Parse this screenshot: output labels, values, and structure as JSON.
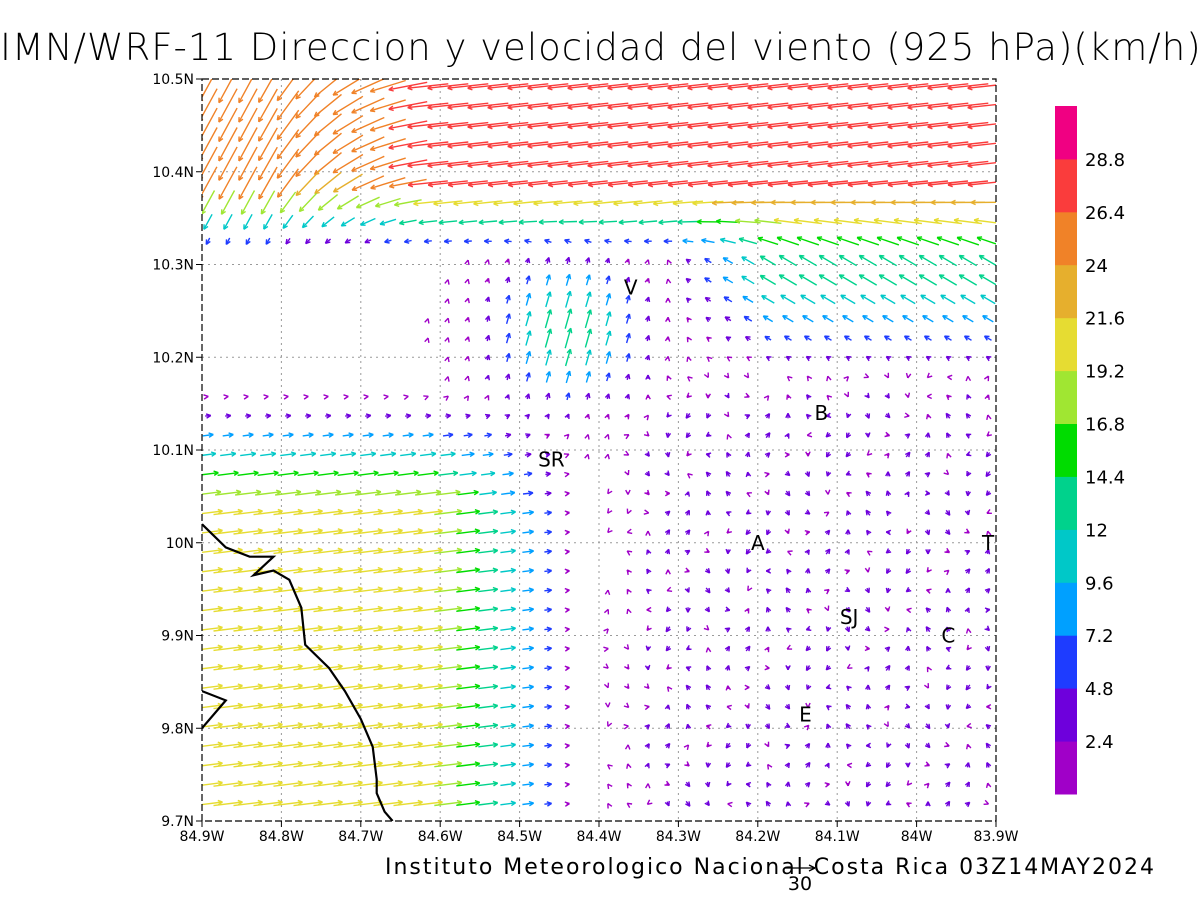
{
  "title": "IMN/WRF-11 Direccion y velocidad del viento (925 hPa)(km/h)",
  "footer": "Instituto Meteorologico Nacional Costa Rica 03Z14MAY2024",
  "reference_vector": {
    "label": "30",
    "speed": 30
  },
  "axes": {
    "x_ticks": [
      "84.9W",
      "84.8W",
      "84.7W",
      "84.6W",
      "84.5W",
      "84.4W",
      "84.3W",
      "84.2W",
      "84.1W",
      "84W",
      "83.9W"
    ],
    "y_ticks": [
      "9.7N",
      "9.8N",
      "9.9N",
      "10N",
      "10.1N",
      "10.2N",
      "10.3N",
      "10.4N",
      "10.5N"
    ],
    "lon_range": [
      -84.9,
      -83.9
    ],
    "lat_range": [
      9.7,
      10.5
    ],
    "grid": true
  },
  "colorbar": {
    "labels": [
      "2.4",
      "4.8",
      "7.2",
      "9.6",
      "12",
      "14.4",
      "16.8",
      "19.2",
      "21.6",
      "24",
      "26.4",
      "28.8"
    ],
    "colors": [
      "#a000c8",
      "#6e00dc",
      "#1e3cff",
      "#00a0ff",
      "#00c8c8",
      "#00d28c",
      "#00dc00",
      "#a0e632",
      "#e6dc32",
      "#e6af2d",
      "#f08228",
      "#fa3c3c",
      "#f00082"
    ]
  },
  "places": [
    {
      "label": "V",
      "lon": -84.36,
      "lat": 10.275
    },
    {
      "label": "B",
      "lon": -84.12,
      "lat": 10.14
    },
    {
      "label": "SR",
      "lon": -84.46,
      "lat": 10.09
    },
    {
      "label": "A",
      "lon": -84.2,
      "lat": 10.0
    },
    {
      "label": "T",
      "lon": -83.91,
      "lat": 10.0
    },
    {
      "label": "SJ",
      "lon": -84.085,
      "lat": 9.92
    },
    {
      "label": "C",
      "lon": -83.96,
      "lat": 9.9
    },
    {
      "label": "E",
      "lon": -84.14,
      "lat": 9.815
    }
  ],
  "coastline": [
    [
      -84.9,
      10.02
    ],
    [
      -84.87,
      9.995
    ],
    [
      -84.84,
      9.985
    ],
    [
      -84.81,
      9.985
    ],
    [
      -84.835,
      9.965
    ],
    [
      -84.81,
      9.97
    ],
    [
      -84.79,
      9.96
    ],
    [
      -84.775,
      9.93
    ],
    [
      -84.77,
      9.89
    ],
    [
      -84.74,
      9.865
    ],
    [
      -84.72,
      9.84
    ],
    [
      -84.7,
      9.81
    ],
    [
      -84.685,
      9.78
    ],
    [
      -84.68,
      9.745
    ],
    [
      -84.68,
      9.73
    ],
    [
      -84.67,
      9.71
    ],
    [
      -84.66,
      9.7
    ]
  ],
  "coastline_spur": [
    [
      -84.9,
      9.8
    ],
    [
      -84.87,
      9.83
    ],
    [
      -84.9,
      9.84
    ]
  ],
  "wind_field": {
    "description": "sampled vector field; u,v in km/h",
    "regions": [
      {
        "name": "northwest-jet",
        "speed": 27
      },
      {
        "name": "pacific-westerlies",
        "speed": 20
      },
      {
        "name": "central-valley-calm",
        "speed": 4
      }
    ]
  }
}
